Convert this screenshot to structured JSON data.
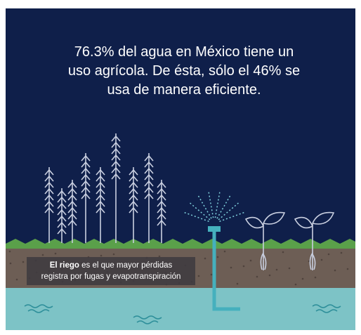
{
  "headline": [
    "76.3% del agua en México tiene un",
    "uso agrícola. De ésta, sólo el 46% se",
    "usa de manera eficiente."
  ],
  "caption": {
    "bold": "El riego",
    "rest": " es el que mayor pérdidas",
    "line2": "registra por fugas y evapotranspiración"
  }
}
